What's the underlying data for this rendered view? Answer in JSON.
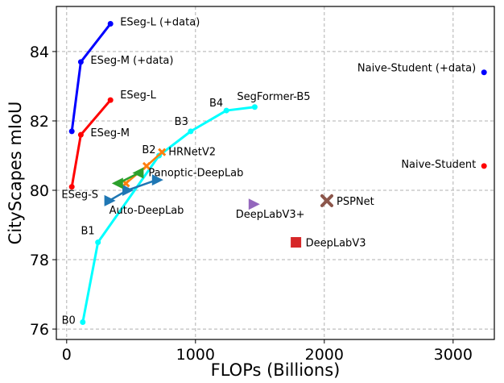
{
  "chart_data": {
    "type": "line",
    "title": "",
    "xlabel": "FLOPs (Billions)",
    "ylabel": "CityScapes mIoU",
    "xlim": [
      -80,
      3320
    ],
    "ylim": [
      75.7,
      85.3
    ],
    "xticks": [
      0,
      1000,
      2000,
      3000
    ],
    "xtick_labels": [
      "0",
      "1000",
      "2000",
      "3000"
    ],
    "yticks": [
      76,
      78,
      80,
      82,
      84
    ],
    "ytick_labels": [
      "76",
      "78",
      "80",
      "82",
      "84"
    ],
    "grid": true,
    "legend": "none",
    "series": [
      {
        "key": "eseg_data",
        "kind": "line",
        "color": "#0000ff",
        "points": [
          {
            "x": 40,
            "y": 81.7
          },
          {
            "x": 110,
            "y": 83.7
          },
          {
            "x": 340,
            "y": 84.8
          }
        ],
        "labels": [
          {
            "point": 1,
            "text": "ESeg-M (+data)"
          },
          {
            "point": 2,
            "text": "ESeg-L (+data)"
          }
        ]
      },
      {
        "key": "eseg",
        "kind": "line",
        "color": "#ff0000",
        "points": [
          {
            "x": 40,
            "y": 80.1
          },
          {
            "x": 110,
            "y": 81.6
          },
          {
            "x": 340,
            "y": 82.6
          }
        ],
        "labels": [
          {
            "point": 0,
            "text": "ESeg-S"
          },
          {
            "point": 1,
            "text": "ESeg-M"
          },
          {
            "point": 2,
            "text": "ESeg-L"
          }
        ]
      },
      {
        "key": "segformer",
        "kind": "line",
        "color": "#00ffff",
        "points": [
          {
            "x": 125,
            "y": 76.2
          },
          {
            "x": 243,
            "y": 78.5
          },
          {
            "x": 717,
            "y": 81.0
          },
          {
            "x": 963,
            "y": 81.7
          },
          {
            "x": 1240,
            "y": 82.3
          },
          {
            "x": 1460,
            "y": 82.4
          }
        ],
        "labels": [
          {
            "point": 0,
            "text": "B0"
          },
          {
            "point": 1,
            "text": "B1"
          },
          {
            "point": 2,
            "text": "B2"
          },
          {
            "point": 3,
            "text": "B3"
          },
          {
            "point": 4,
            "text": "B4"
          },
          {
            "point": 5,
            "text": "SegFormer-B5"
          }
        ]
      },
      {
        "key": "hrnet",
        "kind": "cross-line",
        "color": "#ff7f0e",
        "points": [
          {
            "x": 460,
            "y": 80.2
          },
          {
            "x": 620,
            "y": 80.7
          },
          {
            "x": 740,
            "y": 81.1
          }
        ],
        "labels": [
          {
            "point": 2,
            "text": "HRNetV2"
          }
        ]
      },
      {
        "key": "panoptic",
        "kind": "triangle-left-line",
        "color": "#2ca02c",
        "points": [
          {
            "x": 400,
            "y": 80.2
          },
          {
            "x": 560,
            "y": 80.5
          }
        ],
        "labels": [
          {
            "point": 1,
            "text": "Panoptic-DeepLab"
          }
        ]
      },
      {
        "key": "autodeeplab",
        "kind": "triangle-right-line",
        "color": "#1f77b4",
        "points": [
          {
            "x": 330,
            "y": 79.7
          },
          {
            "x": 470,
            "y": 80.0
          },
          {
            "x": 700,
            "y": 80.3
          }
        ],
        "labels": [
          {
            "point": 0,
            "text": "Auto-DeepLab"
          }
        ]
      },
      {
        "key": "naive_data",
        "kind": "dot",
        "color": "#0000ff",
        "points": [
          {
            "x": 3240,
            "y": 83.4
          }
        ],
        "labels": [
          {
            "point": 0,
            "text": "Naive-Student (+data)"
          }
        ]
      },
      {
        "key": "naive",
        "kind": "dot",
        "color": "#ff0000",
        "points": [
          {
            "x": 3240,
            "y": 80.7
          }
        ],
        "labels": [
          {
            "point": 0,
            "text": "Naive-Student"
          }
        ]
      },
      {
        "key": "deeplabv3plus",
        "kind": "triangle-right",
        "color": "#9467bd",
        "points": [
          {
            "x": 1450,
            "y": 79.6
          }
        ],
        "labels": [
          {
            "point": 0,
            "text": "DeepLabV3+"
          }
        ]
      },
      {
        "key": "pspnet",
        "kind": "x",
        "color": "#8c564b",
        "points": [
          {
            "x": 2020,
            "y": 79.7
          }
        ],
        "labels": [
          {
            "point": 0,
            "text": "PSPNet"
          }
        ]
      },
      {
        "key": "deeplabv3",
        "kind": "square",
        "color": "#d62728",
        "points": [
          {
            "x": 1780,
            "y": 78.5
          }
        ],
        "labels": [
          {
            "point": 0,
            "text": "DeepLabV3"
          }
        ]
      }
    ]
  }
}
